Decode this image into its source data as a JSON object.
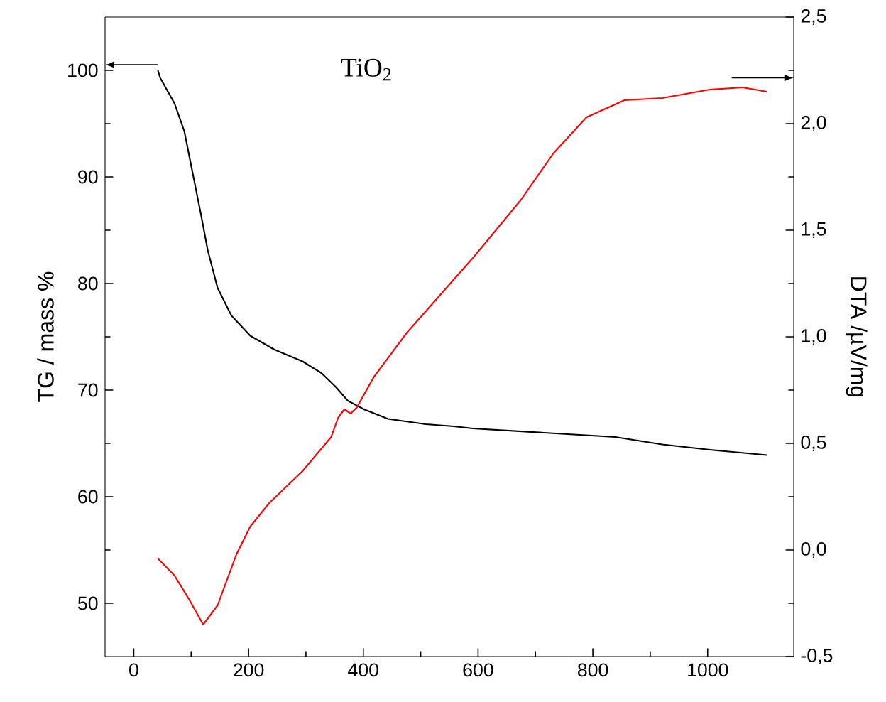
{
  "chart_data": {
    "type": "line",
    "title": "TiO$_{2}$",
    "ylabel": "TG / mass %",
    "y2label": "DTA /µV/mg",
    "xlim": [
      -50,
      1150
    ],
    "xticks": [
      0,
      200,
      400,
      600,
      800,
      1000
    ],
    "ylim": [
      45,
      105
    ],
    "yticks": [
      50,
      60,
      70,
      80,
      90,
      100
    ],
    "y2lim": [
      -0.5,
      2.5
    ],
    "y2ticks": [
      {
        "value": -0.5,
        "label": "-0,5"
      },
      {
        "value": 0,
        "label": "0,0"
      },
      {
        "value": 0.5,
        "label": "0,5"
      },
      {
        "value": 1,
        "label": "1,0"
      },
      {
        "value": 1.5,
        "label": "1,5"
      },
      {
        "value": 2,
        "label": "2,0"
      },
      {
        "value": 2.5,
        "label": "2,5"
      }
    ],
    "series": [
      {
        "color": "#000000",
        "axis": "y",
        "x": [
          42,
          46,
          71,
          88,
          104,
          117,
          129,
          146,
          170,
          203,
          245,
          294,
          327,
          352,
          373,
          401,
          443,
          509,
          558,
          591,
          715,
          839,
          921,
          1004,
          1103
        ],
        "values": [
          100,
          99.3,
          96.9,
          94.3,
          90,
          86.5,
          83.1,
          79.6,
          77,
          75.1,
          73.8,
          72.7,
          71.6,
          70.3,
          69,
          68.2,
          67.3,
          66.8,
          66.6,
          66.4,
          66,
          65.6,
          64.9,
          64.4,
          63.9
        ]
      },
      {
        "color": "#ff0000",
        "axis": "y2",
        "x": [
          42,
          71,
          96,
          121,
          146,
          179,
          203,
          236,
          294,
          344,
          356,
          367,
          378,
          389,
          418,
          476,
          509,
          558,
          591,
          674,
          731,
          789,
          855,
          921,
          1004,
          1061,
          1103
        ],
        "values": [
          -0.04,
          -0.12,
          -0.23,
          -0.35,
          -0.26,
          -0.02,
          0.11,
          0.22,
          0.37,
          0.53,
          0.62,
          0.66,
          0.64,
          0.67,
          0.81,
          1.02,
          1.12,
          1.27,
          1.37,
          1.64,
          1.86,
          2.03,
          2.11,
          2.12,
          2.16,
          2.17,
          2.15
        ]
      }
    ]
  }
}
